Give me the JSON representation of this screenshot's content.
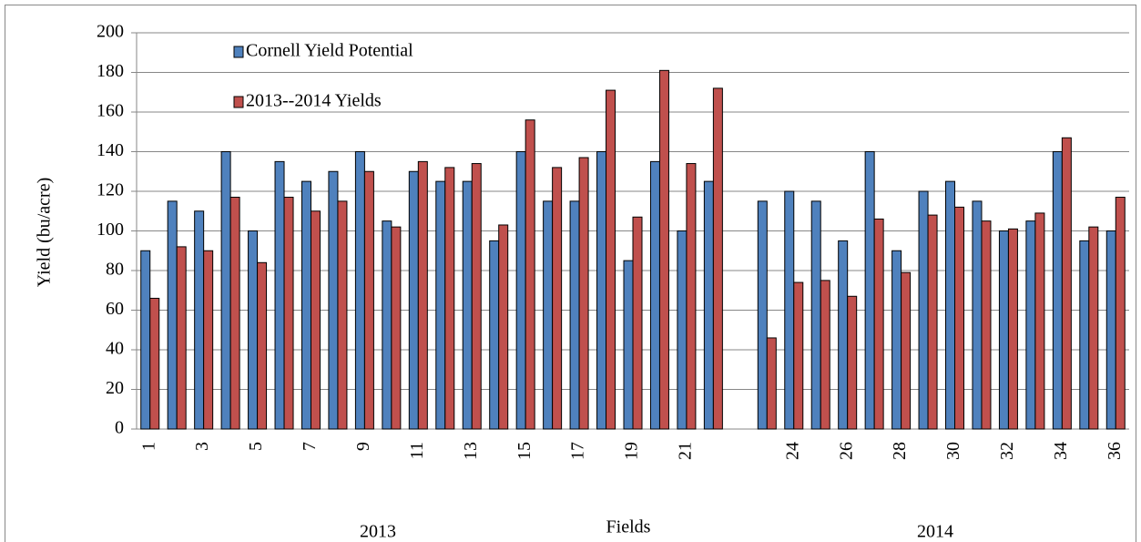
{
  "chart_data": {
    "type": "bar",
    "ylabel": "Yield (bu/acre)",
    "xlabel": "Fields",
    "groups": [
      "2013",
      "2014"
    ],
    "categories": [
      "1",
      null,
      "3",
      null,
      "5",
      null,
      "7",
      null,
      "9",
      null,
      "11",
      null,
      "13",
      null,
      "15",
      null,
      "17",
      null,
      "19",
      null,
      "21",
      null,
      null,
      null,
      "24",
      null,
      "26",
      null,
      "28",
      null,
      "30",
      null,
      "32",
      null,
      "34",
      null,
      "36"
    ],
    "series": [
      {
        "name": "Cornell Yield Potential",
        "color": "#4f81bd",
        "values": [
          90,
          115,
          110,
          140,
          100,
          135,
          125,
          130,
          140,
          105,
          130,
          125,
          125,
          95,
          140,
          115,
          115,
          140,
          85,
          135,
          100,
          125,
          null,
          115,
          120,
          115,
          95,
          140,
          90,
          120,
          125,
          115,
          100,
          105,
          140,
          95,
          100
        ]
      },
      {
        "name": "2013--2014 Yields",
        "color": "#c0504d",
        "values": [
          66,
          92,
          90,
          117,
          84,
          117,
          110,
          115,
          130,
          102,
          135,
          132,
          134,
          103,
          156,
          132,
          137,
          171,
          107,
          181,
          134,
          172,
          null,
          46,
          74,
          75,
          67,
          106,
          79,
          108,
          112,
          105,
          101,
          109,
          147,
          102,
          117
        ]
      }
    ],
    "ylim": [
      0,
      200
    ],
    "yticks": [
      0,
      20,
      40,
      60,
      80,
      100,
      120,
      140,
      160,
      180,
      200
    ],
    "grid": true,
    "legend": "top-left"
  }
}
